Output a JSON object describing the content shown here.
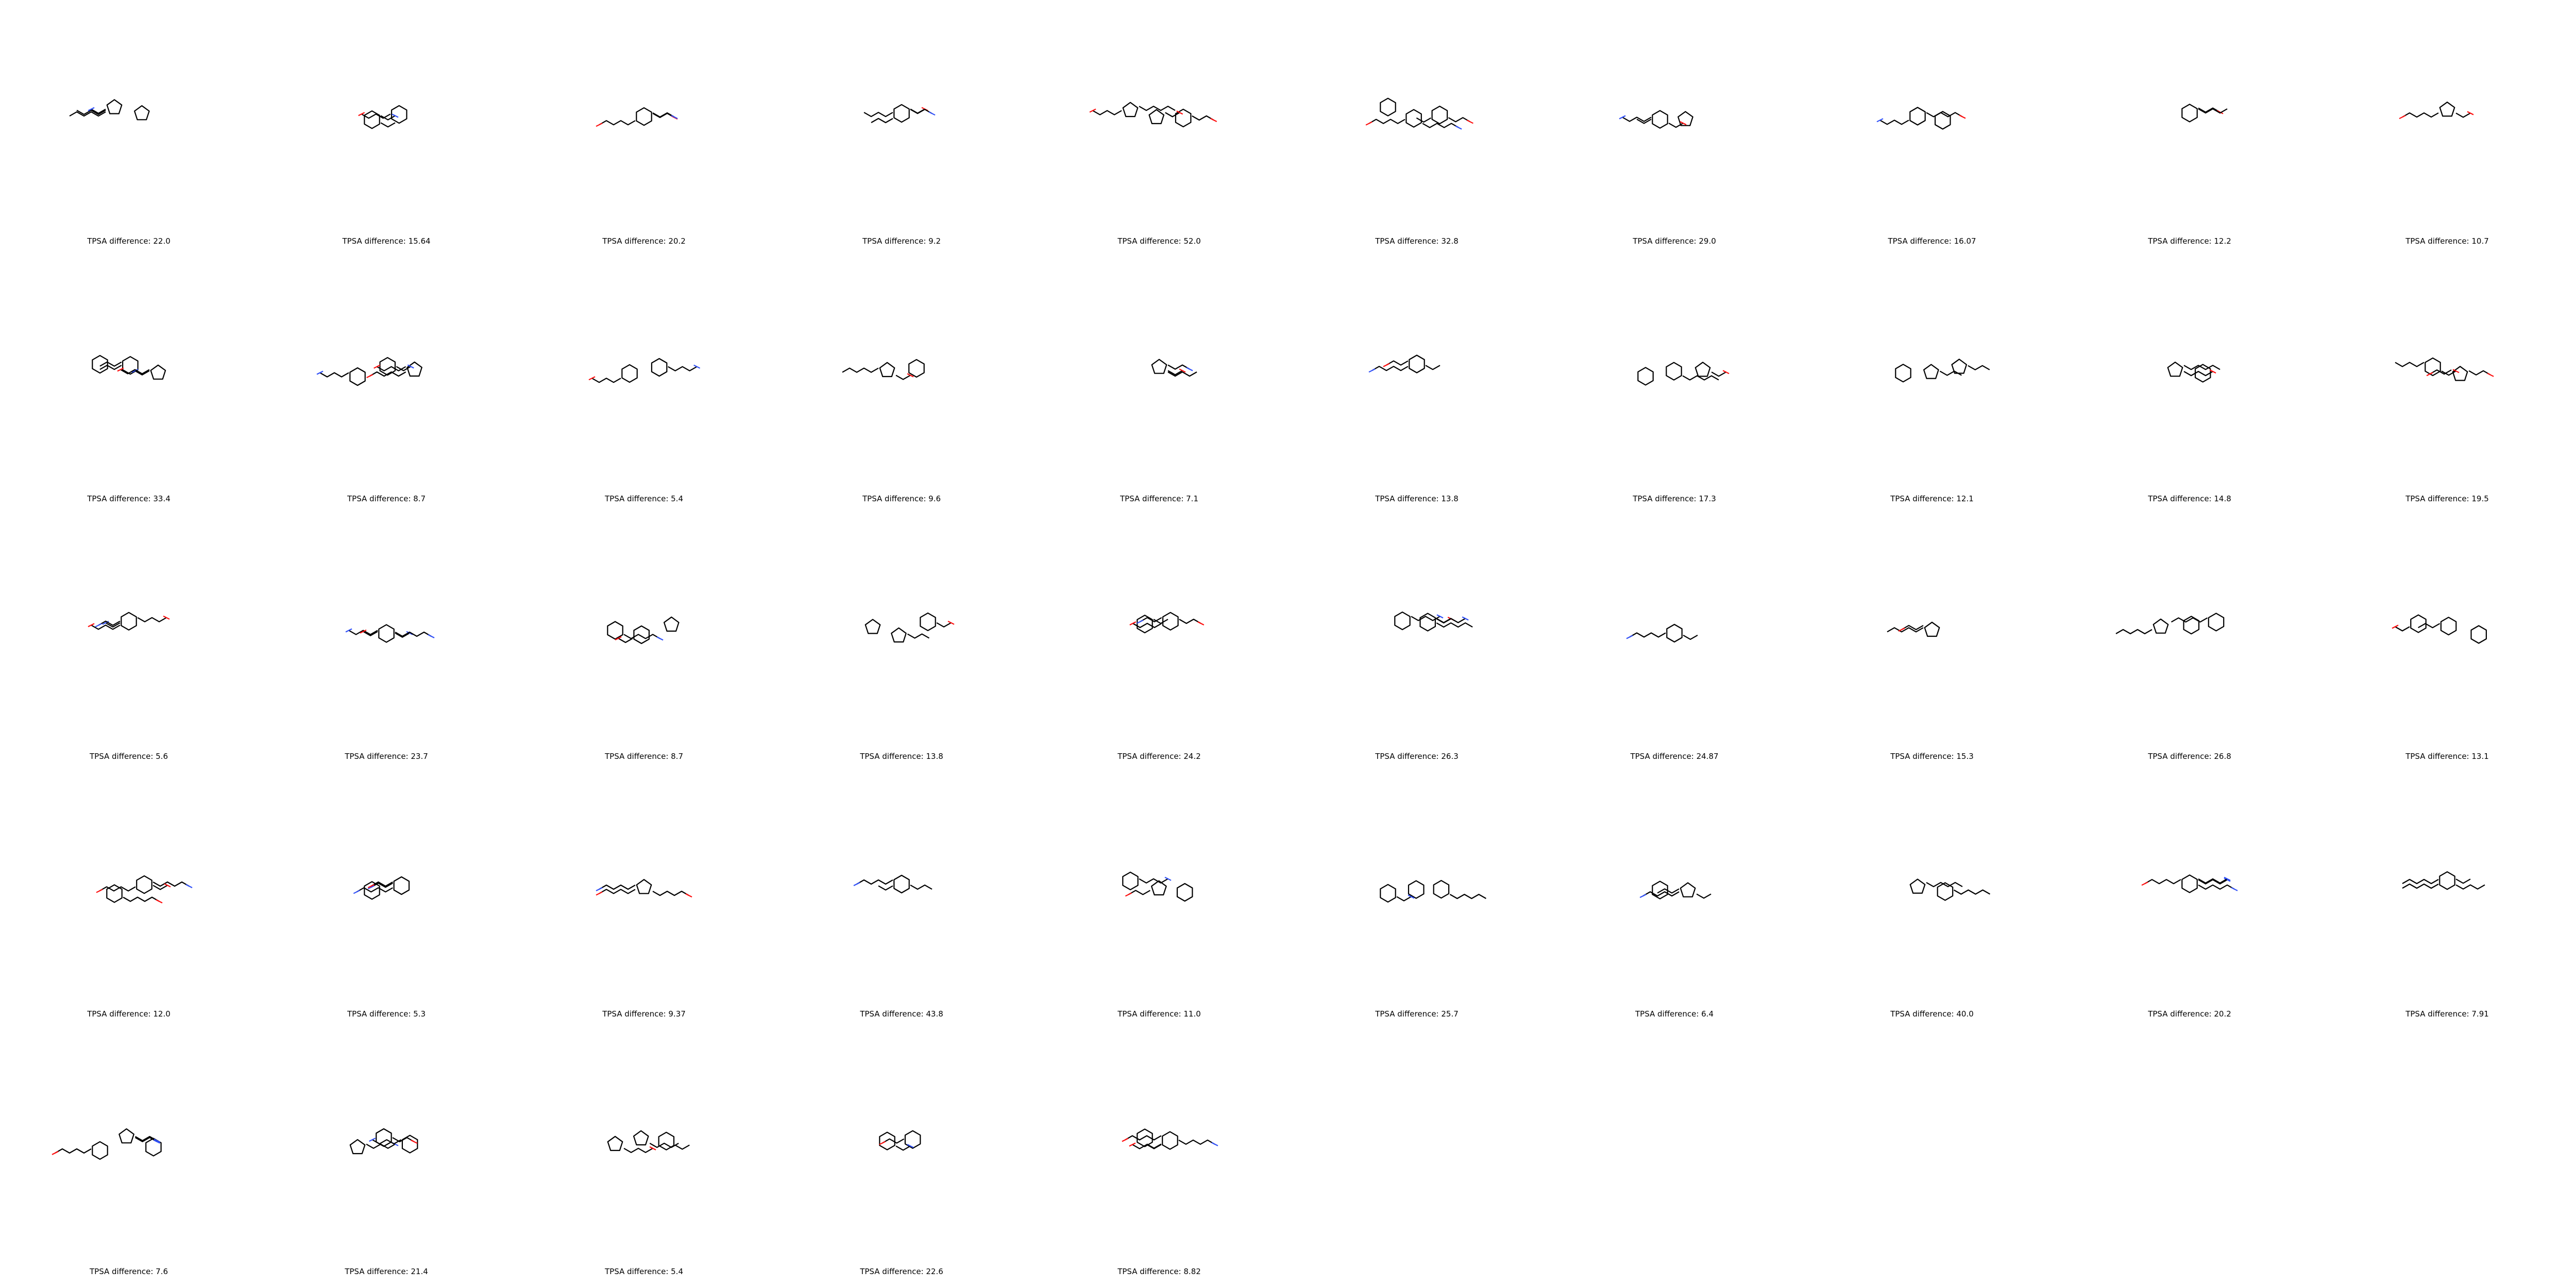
{
  "grid": {
    "columns": 10,
    "molecules": [
      {
        "label": "TPSA difference: 22.0"
      },
      {
        "label": "TPSA difference: 15.64"
      },
      {
        "label": "TPSA difference: 20.2"
      },
      {
        "label": "TPSA difference: 9.2"
      },
      {
        "label": "TPSA difference: 52.0"
      },
      {
        "label": "TPSA difference: 32.8"
      },
      {
        "label": "TPSA difference: 29.0"
      },
      {
        "label": "TPSA difference: 16.07"
      },
      {
        "label": "TPSA difference: 12.2"
      },
      {
        "label": "TPSA difference: 10.7"
      },
      {
        "label": "TPSA difference: 33.4"
      },
      {
        "label": "TPSA difference: 8.7"
      },
      {
        "label": "TPSA difference: 5.4"
      },
      {
        "label": "TPSA difference: 9.6"
      },
      {
        "label": "TPSA difference: 7.1"
      },
      {
        "label": "TPSA difference: 13.8"
      },
      {
        "label": "TPSA difference: 17.3"
      },
      {
        "label": "TPSA difference: 12.1"
      },
      {
        "label": "TPSA difference: 14.8"
      },
      {
        "label": "TPSA difference: 19.5"
      },
      {
        "label": "TPSA difference: 5.6"
      },
      {
        "label": "TPSA difference: 23.7"
      },
      {
        "label": "TPSA difference: 8.7"
      },
      {
        "label": "TPSA difference: 13.8"
      },
      {
        "label": "TPSA difference: 24.2"
      },
      {
        "label": "TPSA difference: 26.3"
      },
      {
        "label": "TPSA difference: 24.87"
      },
      {
        "label": "TPSA difference: 15.3"
      },
      {
        "label": "TPSA difference: 26.8"
      },
      {
        "label": "TPSA difference: 13.1"
      },
      {
        "label": "TPSA difference: 12.0"
      },
      {
        "label": "TPSA difference: 5.3"
      },
      {
        "label": "TPSA difference: 9.37"
      },
      {
        "label": "TPSA difference: 43.8"
      },
      {
        "label": "TPSA difference: 11.0"
      },
      {
        "label": "TPSA difference: 25.7"
      },
      {
        "label": "TPSA difference: 6.4"
      },
      {
        "label": "TPSA difference: 40.0"
      },
      {
        "label": "TPSA difference: 20.2"
      },
      {
        "label": "TPSA difference: 7.91"
      },
      {
        "label": "TPSA difference: 7.6"
      },
      {
        "label": "TPSA difference: 21.4"
      },
      {
        "label": "TPSA difference: 5.4"
      },
      {
        "label": "TPSA difference: 22.6"
      },
      {
        "label": "TPSA difference: 8.82"
      }
    ]
  },
  "colors": {
    "bond": "#000000",
    "oxygen": "#ff0d0d",
    "nitrogen": "#3050f8",
    "background": "#ffffff"
  }
}
